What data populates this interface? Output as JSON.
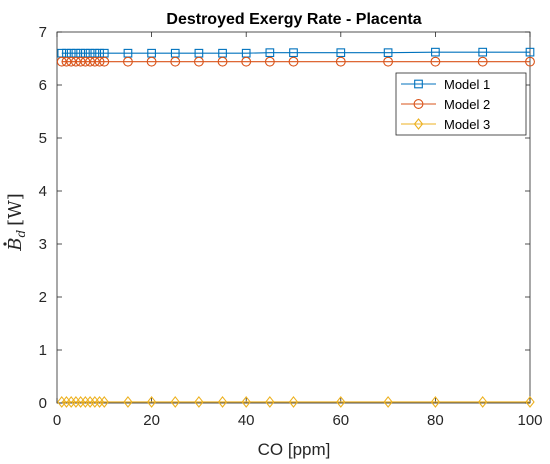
{
  "chart_data": {
    "type": "line",
    "title": "Destroyed Exergy Rate - Placenta",
    "xlabel": "CO [ppm]",
    "ylabel": {
      "symbol": "B",
      "subscript": "d",
      "unit": "[W]"
    },
    "xlim": [
      0,
      100
    ],
    "ylim": [
      0,
      7
    ],
    "xticks": [
      0,
      20,
      40,
      60,
      80,
      100
    ],
    "yticks": [
      0,
      1,
      2,
      3,
      4,
      5,
      6,
      7
    ],
    "grid": false,
    "legend_position": "top-right",
    "x": [
      1,
      2,
      3,
      4,
      5,
      6,
      7,
      8,
      9,
      10,
      15,
      20,
      25,
      30,
      35,
      40,
      45,
      50,
      60,
      70,
      80,
      90,
      100
    ],
    "series": [
      {
        "name": "Model 1",
        "color": "#0072BD",
        "marker": "square",
        "values": [
          6.6,
          6.6,
          6.6,
          6.6,
          6.6,
          6.6,
          6.6,
          6.6,
          6.6,
          6.6,
          6.6,
          6.6,
          6.6,
          6.6,
          6.6,
          6.6,
          6.61,
          6.61,
          6.61,
          6.61,
          6.62,
          6.62,
          6.62
        ]
      },
      {
        "name": "Model 2",
        "color": "#D95319",
        "marker": "circle",
        "values": [
          6.44,
          6.44,
          6.44,
          6.44,
          6.44,
          6.44,
          6.44,
          6.44,
          6.44,
          6.44,
          6.44,
          6.44,
          6.44,
          6.44,
          6.44,
          6.44,
          6.44,
          6.44,
          6.44,
          6.44,
          6.44,
          6.44,
          6.44
        ]
      },
      {
        "name": "Model 3",
        "color": "#EDB120",
        "marker": "diamond",
        "values": [
          0.02,
          0.02,
          0.02,
          0.02,
          0.02,
          0.02,
          0.02,
          0.02,
          0.02,
          0.02,
          0.02,
          0.02,
          0.02,
          0.02,
          0.02,
          0.02,
          0.02,
          0.02,
          0.02,
          0.02,
          0.02,
          0.02,
          0.02
        ]
      }
    ]
  }
}
